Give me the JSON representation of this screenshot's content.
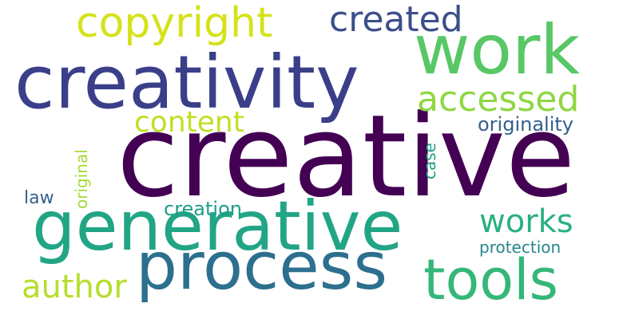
{
  "wordcloud": {
    "background": "#ffffff",
    "words": [
      {
        "text": "creative",
        "color": "#440154",
        "orientation": "horizontal"
      },
      {
        "text": "creativity",
        "color": "#3b3f89",
        "orientation": "horizontal"
      },
      {
        "text": "work",
        "color": "#58c765",
        "orientation": "horizontal"
      },
      {
        "text": "generative",
        "color": "#21a585",
        "orientation": "horizontal"
      },
      {
        "text": "process",
        "color": "#2d6f8e",
        "orientation": "horizontal"
      },
      {
        "text": "tools",
        "color": "#35b779",
        "orientation": "horizontal"
      },
      {
        "text": "copyright",
        "color": "#d5e21a",
        "orientation": "horizontal"
      },
      {
        "text": "accessed",
        "color": "#8fd744",
        "orientation": "horizontal"
      },
      {
        "text": "created",
        "color": "#3c4f8a",
        "orientation": "horizontal"
      },
      {
        "text": "works",
        "color": "#2ab07f",
        "orientation": "horizontal"
      },
      {
        "text": "author",
        "color": "#b5de2b",
        "orientation": "horizontal"
      },
      {
        "text": "content",
        "color": "#c0df25",
        "orientation": "horizontal"
      },
      {
        "text": "originality",
        "color": "#355f8d",
        "orientation": "horizontal"
      },
      {
        "text": "creation",
        "color": "#1e9c89",
        "orientation": "horizontal"
      },
      {
        "text": "protection",
        "color": "#25858e",
        "orientation": "horizontal"
      },
      {
        "text": "law",
        "color": "#34618d",
        "orientation": "horizontal"
      },
      {
        "text": "original",
        "color": "#a2da37",
        "orientation": "vertical"
      },
      {
        "text": "case",
        "color": "#1fa088",
        "orientation": "vertical"
      }
    ]
  }
}
